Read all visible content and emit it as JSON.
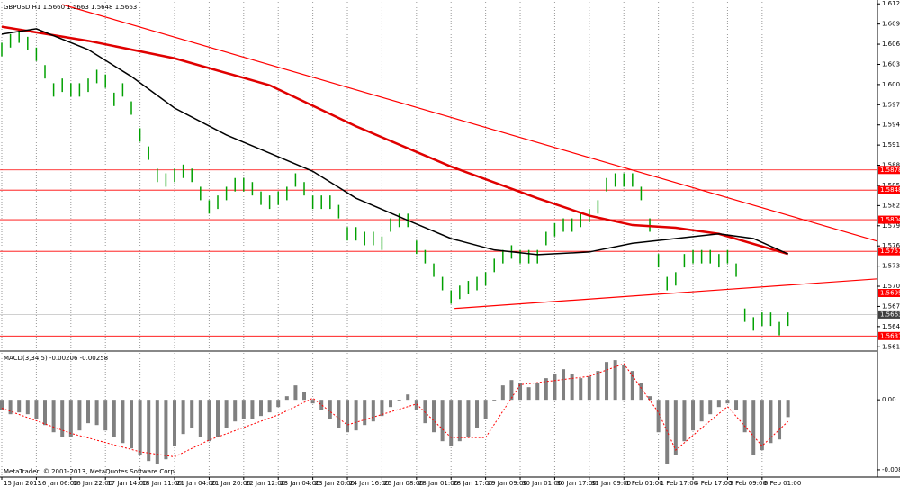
{
  "chart_data": [
    {
      "type": "ohlc",
      "title": "GBPUSD,H1 1.5660 1.5663 1.5648 1.5663",
      "color": "#00a000",
      "xlim": [
        0,
        101.35
      ],
      "xticks": [
        {
          "value": 0,
          "label": "15 Jan 2013"
        },
        {
          "value": 4,
          "label": "16 Jan 06:00"
        },
        {
          "value": 8,
          "label": "16 Jan 22:00"
        },
        {
          "value": 12,
          "label": "17 Jan 14:00"
        },
        {
          "value": 16,
          "label": "18 Jan 11:00"
        },
        {
          "value": 20,
          "label": "21 Jan 04:00"
        },
        {
          "value": 24,
          "label": "21 Jan 20:00"
        },
        {
          "value": 28,
          "label": "22 Jan 12:00"
        },
        {
          "value": 32,
          "label": "23 Jan 04:00"
        },
        {
          "value": 36,
          "label": "23 Jan 20:00"
        },
        {
          "value": 40,
          "label": "24 Jan 16:00"
        },
        {
          "value": 44,
          "label": "25 Jan 08:00"
        },
        {
          "value": 48,
          "label": "28 Jan 01:00"
        },
        {
          "value": 52,
          "label": "28 Jan 17:00"
        },
        {
          "value": 56,
          "label": "29 Jan 09:00"
        },
        {
          "value": 60,
          "label": "30 Jan 01:00"
        },
        {
          "value": 64,
          "label": "30 Jan 17:00"
        },
        {
          "value": 68,
          "label": "31 Jan 09:00"
        },
        {
          "value": 72,
          "label": "1 Feb 01:00"
        },
        {
          "value": 76,
          "label": "1 Feb 17:00"
        },
        {
          "value": 80,
          "label": "4 Feb 17:00"
        },
        {
          "value": 84,
          "label": "5 Feb 09:00"
        },
        {
          "value": 88,
          "label": "6 Feb 01:00"
        }
      ],
      "ylim": [
        1.561,
        1.6128
      ],
      "yticks": [
        1.6125,
        1.6095,
        1.6065,
        1.6035,
        1.6005,
        1.5975,
        1.5945,
        1.5915,
        1.5885,
        1.5855,
        1.5825,
        1.5795,
        1.5765,
        1.5735,
        1.5705,
        1.5675,
        1.5645,
        1.5615
      ],
      "grid": true,
      "high": [
        1.6067,
        1.608,
        1.6087,
        1.6076,
        1.606,
        1.6034,
        1.6007,
        1.6014,
        1.6007,
        1.6007,
        1.6014,
        1.6027,
        1.602,
        1.5993,
        1.6007,
        1.598,
        1.594,
        1.5913,
        1.588,
        1.5873,
        1.588,
        1.5886,
        1.588,
        1.5853,
        1.5833,
        1.584,
        1.5853,
        1.5866,
        1.5866,
        1.586,
        1.5846,
        1.584,
        1.5846,
        1.5853,
        1.5873,
        1.586,
        1.584,
        1.584,
        1.584,
        1.5826,
        1.5793,
        1.5793,
        1.5786,
        1.5786,
        1.5779,
        1.5806,
        1.5813,
        1.5813,
        1.5773,
        1.5759,
        1.5739,
        1.5719,
        1.5699,
        1.5706,
        1.5713,
        1.5719,
        1.5726,
        1.5746,
        1.5759,
        1.5766,
        1.5759,
        1.5759,
        1.5759,
        1.5786,
        1.5799,
        1.5806,
        1.5806,
        1.5813,
        1.582,
        1.5833,
        1.5866,
        1.5873,
        1.5873,
        1.5873,
        1.5853,
        1.5806,
        1.5753,
        1.5719,
        1.5726,
        1.5753,
        1.5759,
        1.5759,
        1.5759,
        1.5753,
        1.5759,
        1.5739,
        1.5672,
        1.5659,
        1.5666,
        1.5666,
        1.5652,
        1.5666
      ],
      "low": [
        1.6047,
        1.606,
        1.6067,
        1.6056,
        1.604,
        1.6014,
        1.5987,
        1.5994,
        1.5987,
        1.5987,
        1.5994,
        1.6007,
        1.6,
        1.5973,
        1.5987,
        1.596,
        1.592,
        1.5893,
        1.586,
        1.5853,
        1.586,
        1.5866,
        1.586,
        1.5833,
        1.5813,
        1.582,
        1.5833,
        1.5846,
        1.5846,
        1.584,
        1.5826,
        1.582,
        1.5826,
        1.5833,
        1.5853,
        1.584,
        1.582,
        1.582,
        1.582,
        1.5806,
        1.5773,
        1.5773,
        1.5766,
        1.5766,
        1.5759,
        1.5786,
        1.5793,
        1.5793,
        1.5753,
        1.5739,
        1.5719,
        1.5699,
        1.5679,
        1.5686,
        1.5693,
        1.5699,
        1.5706,
        1.5726,
        1.5739,
        1.5746,
        1.5739,
        1.5739,
        1.5739,
        1.5766,
        1.5779,
        1.5786,
        1.5786,
        1.5793,
        1.58,
        1.5813,
        1.5846,
        1.5853,
        1.5853,
        1.5853,
        1.5833,
        1.5786,
        1.5733,
        1.5699,
        1.5706,
        1.5733,
        1.5739,
        1.5739,
        1.5739,
        1.5733,
        1.5739,
        1.5719,
        1.5652,
        1.5639,
        1.5646,
        1.5646,
        1.5632,
        1.5646
      ],
      "series": [
        {
          "color": "#e00000",
          "x": [
            0,
            10,
            20,
            31,
            41,
            52,
            62,
            68,
            73,
            78,
            83,
            91
          ],
          "values": [
            1.6091,
            1.607,
            1.6044,
            1.6004,
            1.5943,
            1.5883,
            1.5836,
            1.581,
            1.5796,
            1.5792,
            1.5783,
            1.5753
          ]
        },
        {
          "color": "#000000",
          "x": [
            0,
            4,
            10,
            15,
            20,
            26,
            31,
            36,
            41,
            47,
            52,
            57,
            62,
            68,
            73,
            78,
            83,
            87,
            91
          ],
          "values": [
            1.608,
            1.6088,
            1.6057,
            1.6017,
            1.597,
            1.593,
            1.5903,
            1.5876,
            1.5836,
            1.5803,
            1.5776,
            1.5759,
            1.5752,
            1.5756,
            1.5769,
            1.5776,
            1.5783,
            1.5776,
            1.5753
          ]
        }
      ],
      "trendlines": [
        {
          "color": "#ff0000",
          "x": [
            7,
            101.35
          ],
          "values": [
            1.6124,
            1.5772
          ]
        },
        {
          "color": "#ff0000",
          "x": [
            52.4,
            101.35
          ],
          "values": [
            1.5672,
            1.5716
          ]
        }
      ],
      "levels": {
        "color": "#ff0000",
        "values": [
          1.5878,
          1.5848,
          1.5804,
          1.5757,
          1.5695,
          1.5631
        ]
      },
      "last_price": 1.5663
    },
    {
      "type": "macd",
      "title": "MACD(3,34,5) -0.00206 -0.00258",
      "color": "#808080",
      "ylim": [
        -0.009,
        0.0056
      ],
      "yticks": [
        {
          "value": 0,
          "label": "0.00"
        },
        -0.00835
      ],
      "values": [
        -0.00118,
        -0.00172,
        -0.0015,
        -0.00172,
        -0.00226,
        -0.00301,
        -0.00387,
        -0.0044,
        -0.0044,
        -0.00365,
        -0.00279,
        -0.00301,
        -0.00365,
        -0.0044,
        -0.00516,
        -0.0058,
        -0.00655,
        -0.0073,
        -0.00763,
        -0.00709,
        -0.00548,
        -0.00408,
        -0.00333,
        -0.0044,
        -0.00494,
        -0.0044,
        -0.00333,
        -0.00258,
        -0.00226,
        -0.00226,
        -0.00193,
        -0.0015,
        -0.00086,
        0.00043,
        0.00172,
        0.00097,
        -0.00043,
        -0.00118,
        -0.00226,
        -0.00333,
        -0.00387,
        -0.00365,
        -0.00301,
        -0.00258,
        -0.00193,
        -0.00086,
        -0.00011,
        0.00064,
        -0.00118,
        -0.00279,
        -0.00387,
        -0.00494,
        -0.00548,
        -0.00494,
        -0.0044,
        -0.00333,
        -0.00226,
        -0.00011,
        0.00172,
        0.00236,
        0.00204,
        0.0015,
        0.00204,
        0.00258,
        0.00311,
        0.00365,
        0.00311,
        0.00258,
        0.00279,
        0.00344,
        0.00451,
        0.00473,
        0.00419,
        0.00344,
        0.00204,
        0.00043,
        -0.00387,
        -0.00763,
        -0.00655,
        -0.00494,
        -0.00365,
        -0.00258,
        -0.00172,
        -0.00086,
        -0.00043,
        -0.00118,
        -0.00387,
        -0.00655,
        -0.00601,
        -0.00516,
        -0.00473,
        -0.00206
      ],
      "signal": {
        "color": "#ff0000",
        "x": [
          0,
          8,
          16,
          20,
          24,
          32,
          36,
          40,
          48,
          52,
          56,
          60,
          68,
          72,
          76,
          78,
          82,
          84,
          88,
          91
        ],
        "values": [
          -0.001,
          -0.004,
          -0.0062,
          -0.0068,
          -0.0048,
          -0.0018,
          0.0002,
          -0.003,
          -0.0005,
          -0.0045,
          -0.0045,
          0.0018,
          0.0028,
          0.0043,
          -0.0015,
          -0.006,
          -0.0025,
          -0.0008,
          -0.0055,
          -0.00258
        ]
      }
    }
  ],
  "footer": "MetaTrader, © 2001-2013, MetaQuotes Software Corp."
}
